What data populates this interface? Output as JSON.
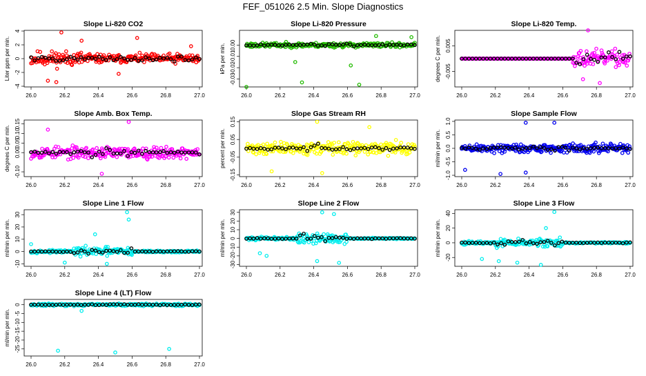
{
  "page_title": "FEF_051026  2.5 Min. Slope Diagnostics",
  "chart_data": [
    {
      "type": "scatter",
      "title": "Slope Li-820 CO2",
      "ylabel": "Liter ppm per min.",
      "xlim": [
        26.0,
        27.0
      ],
      "ylim": [
        -4.1,
        4.1
      ],
      "xticks": [
        "26.0",
        "26.2",
        "26.4",
        "26.6",
        "26.8",
        "27.0"
      ],
      "yticks": [
        -4,
        -2,
        0,
        2,
        4
      ],
      "ytick_labels": [
        "-4",
        "-2",
        "0",
        "2",
        "4"
      ],
      "color": "#ff0000",
      "base": 0,
      "spread": [
        1.6,
        0.9,
        1.0
      ],
      "outliers": [
        [
          26.18,
          3.8
        ],
        [
          26.15,
          -3.4
        ],
        [
          26.1,
          -3.2
        ],
        [
          26.63,
          3.0
        ],
        [
          26.52,
          -2.2
        ],
        [
          26.95,
          1.8
        ],
        [
          26.3,
          2.6
        ]
      ],
      "seed": 11
    },
    {
      "type": "scatter",
      "title": "Slope Li-820 Pressure",
      "ylabel": "kPa per min.",
      "xlim": [
        26.0,
        27.0
      ],
      "ylim": [
        -0.037,
        0.013
      ],
      "xticks": [
        "26.0",
        "26.2",
        "26.4",
        "26.6",
        "26.8",
        "27.0"
      ],
      "yticks": [
        0.0,
        -0.01,
        -0.02,
        -0.03
      ],
      "ytick_labels": [
        "0.00",
        "-0.01",
        "-0.02",
        "-0.03"
      ],
      "color": "#22bb00",
      "base": 0,
      "spread": [
        0.003,
        0.003,
        0.003
      ],
      "outliers": [
        [
          26.33,
          -0.033
        ],
        [
          26.67,
          -0.035
        ],
        [
          26.0,
          -0.037
        ],
        [
          26.29,
          -0.015
        ],
        [
          26.62,
          -0.018
        ],
        [
          26.77,
          0.008
        ],
        [
          26.98,
          0.007
        ]
      ],
      "seed": 23
    },
    {
      "type": "scatter",
      "title": "Slope Li-820 Temp.",
      "ylabel": "degrees C per min.",
      "xlim": [
        26.0,
        27.0
      ],
      "ylim": [
        -0.011,
        0.011
      ],
      "xticks": [
        "26.0",
        "26.2",
        "26.4",
        "26.6",
        "26.8",
        "27.0"
      ],
      "yticks": [
        0.005,
        -0.005
      ],
      "ytick_labels": [
        "0.005",
        "-0.005"
      ],
      "color": "#ff00ff",
      "base": 0,
      "spread": [
        0,
        0,
        0.0045
      ],
      "flat_until": 26.66,
      "outliers": [
        [
          26.75,
          0.011
        ],
        [
          26.82,
          -0.0095
        ],
        [
          26.72,
          -0.008
        ]
      ],
      "seed": 37
    },
    {
      "type": "scatter",
      "title": "Slope Amb. Box Temp.",
      "ylabel": "degrees C per min.",
      "xlim": [
        26.0,
        27.0
      ],
      "ylim": [
        -0.125,
        0.17
      ],
      "xticks": [
        "26.0",
        "26.2",
        "26.4",
        "26.6",
        "26.8",
        "27.0"
      ],
      "yticks": [
        -0.1,
        0.0,
        0.05,
        0.1,
        0.15
      ],
      "ytick_labels": [
        "-0.10",
        "0.00",
        "0.05",
        "0.10",
        "0.15"
      ],
      "color": "#ff00ff",
      "base": 0,
      "spread": [
        0.045,
        0.045,
        0.045
      ],
      "outliers": [
        [
          26.58,
          0.16
        ],
        [
          26.1,
          0.12
        ],
        [
          26.42,
          -0.11
        ]
      ],
      "seed": 53
    },
    {
      "type": "scatter",
      "title": "Slope Gas Stream RH",
      "ylabel": "percent per min.",
      "xlim": [
        26.0,
        27.0
      ],
      "ylim": [
        -0.16,
        0.16
      ],
      "xticks": [
        "26.0",
        "26.2",
        "26.4",
        "26.6",
        "26.8",
        "27.0"
      ],
      "yticks": [
        -0.15,
        -0.05,
        0.05,
        0.15
      ],
      "ytick_labels": [
        "-0.15",
        "-0.05",
        "0.05",
        "0.15"
      ],
      "color": "#ffff00",
      "base": 0,
      "spread": [
        0.05,
        0.05,
        0.05
      ],
      "outliers": [
        [
          26.42,
          0.15
        ],
        [
          26.15,
          -0.13
        ],
        [
          26.73,
          0.12
        ],
        [
          26.45,
          -0.14
        ]
      ],
      "seed": 71
    },
    {
      "type": "scatter",
      "title": "Slope Sample Flow",
      "ylabel": "ml/min per min.",
      "xlim": [
        26.0,
        27.0
      ],
      "ylim": [
        -1.05,
        1.05
      ],
      "xticks": [
        "26.0",
        "26.2",
        "26.4",
        "26.6",
        "26.8",
        "27.0"
      ],
      "yticks": [
        -1.0,
        -0.5,
        0.0,
        0.5,
        1.0
      ],
      "ytick_labels": [
        "-1.0",
        "-0.5",
        "0.0",
        "0.5",
        "1.0"
      ],
      "color": "#0000ee",
      "base": 0,
      "spread": [
        0.25,
        0.25,
        0.25
      ],
      "outliers": [
        [
          26.23,
          -0.95
        ],
        [
          26.38,
          -0.9
        ],
        [
          26.55,
          0.95
        ],
        [
          26.38,
          0.95
        ],
        [
          26.02,
          -0.8
        ]
      ],
      "seed": 89
    },
    {
      "type": "scatter",
      "title": "Slope Line 1 Flow",
      "ylabel": "ml/min per min.",
      "xlim": [
        26.0,
        27.0
      ],
      "ylim": [
        -12,
        34
      ],
      "xticks": [
        "26.0",
        "26.2",
        "26.4",
        "26.6",
        "26.8",
        "27.0"
      ],
      "yticks": [
        -10,
        0,
        10,
        20,
        30
      ],
      "ytick_labels": [
        "-10",
        "0",
        "10",
        "20",
        "30"
      ],
      "color": "#00eeee",
      "base": 0,
      "spread": [
        1.5,
        5,
        1.2
      ],
      "active": [
        26.25,
        26.6
      ],
      "outliers": [
        [
          26.57,
          32
        ],
        [
          26.58,
          26
        ],
        [
          26.38,
          14
        ],
        [
          26.2,
          -9
        ],
        [
          26.0,
          6
        ],
        [
          26.45,
          -10
        ]
      ],
      "seed": 97
    },
    {
      "type": "scatter",
      "title": "Slope Line 2 Flow",
      "ylabel": "ml/min per min.",
      "xlim": [
        26.0,
        27.0
      ],
      "ylim": [
        -32,
        33
      ],
      "xticks": [
        "26.0",
        "26.2",
        "26.4",
        "26.6",
        "26.8",
        "27.0"
      ],
      "yticks": [
        -30,
        -20,
        -10,
        0,
        10,
        20,
        30
      ],
      "ytick_labels": [
        "-30",
        "-20",
        "-10",
        "0",
        "10",
        "20",
        "30"
      ],
      "color": "#00eeee",
      "base": 0,
      "spread": [
        2.5,
        9,
        1.0
      ],
      "active": [
        26.3,
        26.6
      ],
      "outliers": [
        [
          26.45,
          30
        ],
        [
          26.52,
          28
        ],
        [
          26.55,
          -28
        ],
        [
          26.08,
          -17
        ],
        [
          26.12,
          -20
        ],
        [
          26.42,
          -26
        ]
      ],
      "seed": 101
    },
    {
      "type": "scatter",
      "title": "Slope Line 3 Flow",
      "ylabel": "ml/min per min.",
      "xlim": [
        26.0,
        27.0
      ],
      "ylim": [
        -32,
        45
      ],
      "xticks": [
        "26.0",
        "26.2",
        "26.4",
        "26.6",
        "26.8",
        "27.0"
      ],
      "yticks": [
        -20,
        0,
        20,
        40
      ],
      "ytick_labels": [
        "-20",
        "0",
        "20",
        "40"
      ],
      "color": "#00eeee",
      "base": 0,
      "spread": [
        3,
        9,
        1.5
      ],
      "active": [
        26.2,
        26.6
      ],
      "outliers": [
        [
          26.55,
          42
        ],
        [
          26.22,
          -25
        ],
        [
          26.33,
          -27
        ],
        [
          26.47,
          -30
        ],
        [
          26.5,
          20
        ],
        [
          26.12,
          -22
        ]
      ],
      "seed": 113
    },
    {
      "type": "scatter",
      "title": "Slope Line 4 (LT) Flow",
      "ylabel": "ml/min per min.",
      "xlim": [
        26.0,
        27.0
      ],
      "ylim": [
        -29,
        3
      ],
      "xticks": [
        "26.0",
        "26.2",
        "26.4",
        "26.6",
        "26.8",
        "27.0"
      ],
      "yticks": [
        -25,
        -20,
        -15,
        -10,
        -5,
        0
      ],
      "ytick_labels": [
        "-25",
        "-20",
        "-15",
        "-10",
        "-5",
        "0"
      ],
      "color": "#00eeee",
      "base": 0,
      "spread": [
        1.0,
        1.0,
        1.0
      ],
      "outliers": [
        [
          26.16,
          -26
        ],
        [
          26.5,
          -27
        ],
        [
          26.82,
          -25
        ],
        [
          26.3,
          -3.5
        ]
      ],
      "seed": 131
    }
  ]
}
